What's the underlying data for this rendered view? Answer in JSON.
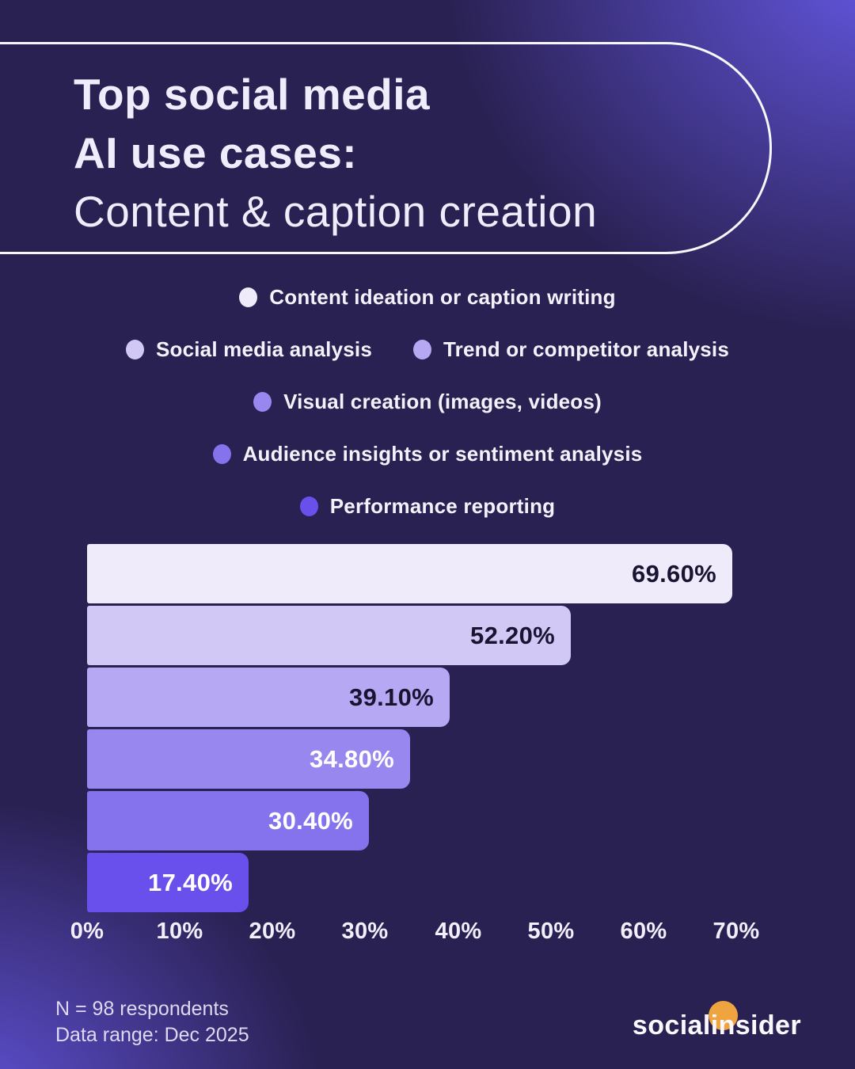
{
  "title": {
    "line1": "Top social media",
    "line2": "AI use cases:",
    "line3": "Content & caption creation"
  },
  "chart_data": {
    "type": "bar",
    "orientation": "horizontal",
    "categories": [
      "Content ideation or caption writing",
      "Social media analysis",
      "Trend or competitor analysis",
      "Visual creation (images, videos)",
      "Audience insights or sentiment analysis",
      "Performance reporting"
    ],
    "values": [
      69.6,
      52.2,
      39.1,
      34.8,
      30.4,
      17.4
    ],
    "value_labels": [
      "69.60%",
      "52.20%",
      "39.10%",
      "34.80%",
      "30.40%",
      "17.40%"
    ],
    "bar_colors": [
      "#EFEBFB",
      "#D2C8F6",
      "#B6A8F3",
      "#9787EF",
      "#8573EE",
      "#6950EC"
    ],
    "value_label_colors": [
      "#1A1433",
      "#1A1433",
      "#1A1433",
      "#FFFFFF",
      "#FFFFFF",
      "#FFFFFF"
    ],
    "xlim": [
      0,
      70
    ],
    "x_ticks": [
      "0%",
      "10%",
      "20%",
      "30%",
      "40%",
      "50%",
      "60%",
      "70%"
    ],
    "legend_position": "top",
    "legend_layout_rows": [
      [
        0
      ],
      [
        1,
        2
      ],
      [
        3
      ],
      [
        4
      ],
      [
        5
      ]
    ],
    "grid": false
  },
  "footer": {
    "note_line1": "N = 98 respondents",
    "note_line2": "Data range: Dec 2025",
    "brand": "socialinsider",
    "brand_prefix": "social",
    "brand_suffix": "insider"
  },
  "colors": {
    "background_base": "#2A2153",
    "corner_glow": "#6457E2",
    "accent_orange": "#F0A43F",
    "title_text": "#EFECFB"
  }
}
